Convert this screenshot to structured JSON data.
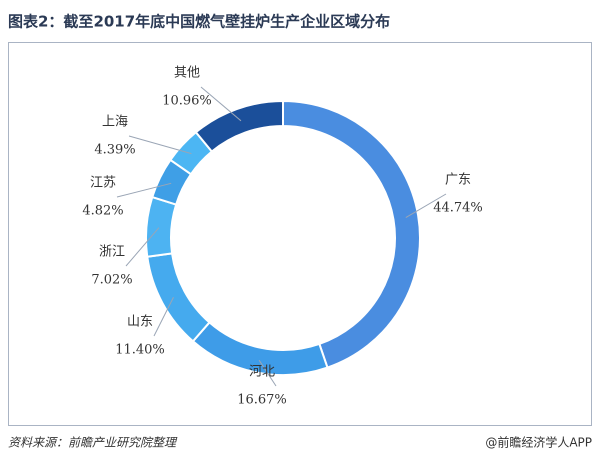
{
  "chart_data": {
    "type": "donut",
    "title": "图表2：截至2017年底中国燃气壁挂炉生产企业区域分布",
    "categories": [
      "广东",
      "河北",
      "山东",
      "浙江",
      "江苏",
      "上海",
      "其他"
    ],
    "values": [
      44.74,
      16.67,
      11.4,
      7.02,
      4.82,
      4.39,
      10.96
    ],
    "value_labels": [
      "44.74%",
      "16.67%",
      "11.40%",
      "7.02%",
      "4.82%",
      "4.39%",
      "10.96%"
    ],
    "colors": [
      "#4a8de0",
      "#3e9ce8",
      "#45aaee",
      "#4db3f2",
      "#3f9fe6",
      "#4cb6f3",
      "#1b4f9a"
    ],
    "source": "资料来源：前瞻产业研究院整理",
    "watermark": "@前瞻经济学人APP"
  }
}
